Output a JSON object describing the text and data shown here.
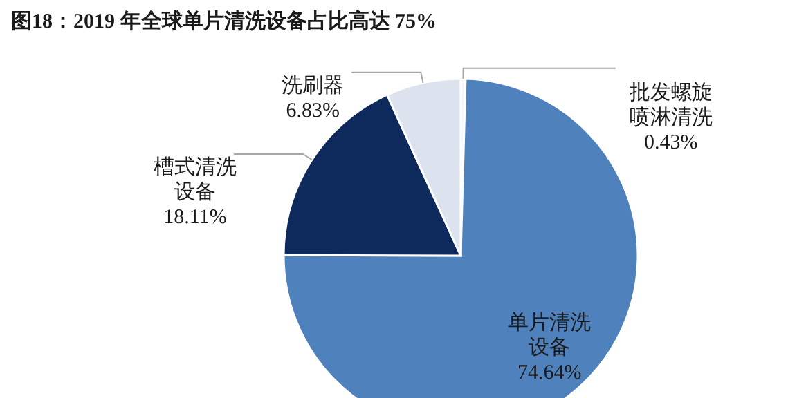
{
  "chart_data": {
    "type": "pie",
    "title": "图18：2019 年全球单片清洗设备占比高达 75%",
    "categories": [
      "批发螺旋喷淋清洗",
      "单片清洗设备",
      "槽式清洗设备",
      "洗刷器"
    ],
    "value_labels": [
      "0.43%",
      "74.64%",
      "18.11%",
      "6.83%"
    ],
    "values": [
      0.43,
      74.64,
      18.11,
      6.83
    ],
    "colors": [
      "#f4f6fa",
      "#4f81bd",
      "#0e2a5c",
      "#dce3ef"
    ]
  }
}
